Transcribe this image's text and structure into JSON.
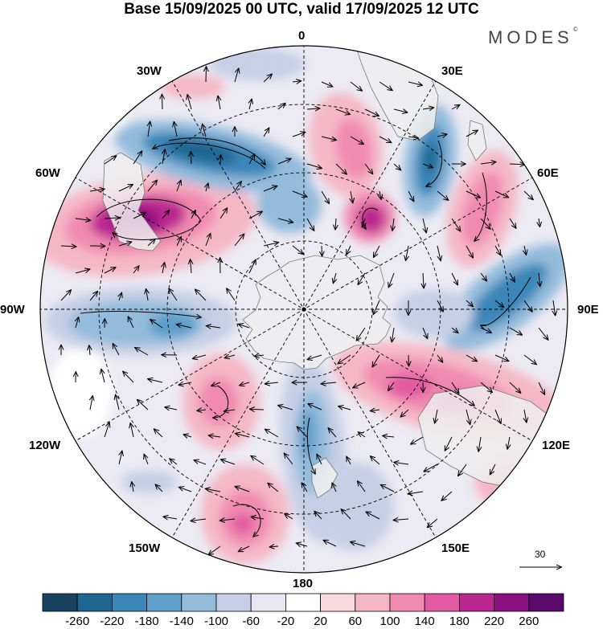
{
  "title": "Base 15/09/2025 00 UTC, valid 17/09/2025 12 UTC",
  "brand": "MODES",
  "brand_mark": "©",
  "longitude_labels": {
    "deg0": "0",
    "deg30E": "30E",
    "deg60E": "60E",
    "deg90E": "90E",
    "deg120E": "120E",
    "deg150E": "150E",
    "deg180": "180",
    "deg150W": "150W",
    "deg120W": "120W",
    "deg90W": "90W",
    "deg60W": "60W",
    "deg30W": "30W"
  },
  "reference_vector": "30",
  "colorbar": {
    "labels": [
      "-260",
      "-220",
      "-180",
      "-140",
      "-100",
      "-60",
      "-20",
      "20",
      "60",
      "100",
      "140",
      "180",
      "220",
      "260"
    ],
    "colors": [
      "#17425f",
      "#1f6690",
      "#3a86b8",
      "#5f9fca",
      "#93bbdb",
      "#c6cfe6",
      "#e7e6f1",
      "#ffffff",
      "#f9d9dd",
      "#f5b7c6",
      "#f08ab1",
      "#e25aa1",
      "#bb2690",
      "#8c1180",
      "#5a0a6a"
    ]
  },
  "colors": {
    "land": "#eeeeee",
    "coast": "#7a7a7a",
    "grid": "#000000"
  }
}
